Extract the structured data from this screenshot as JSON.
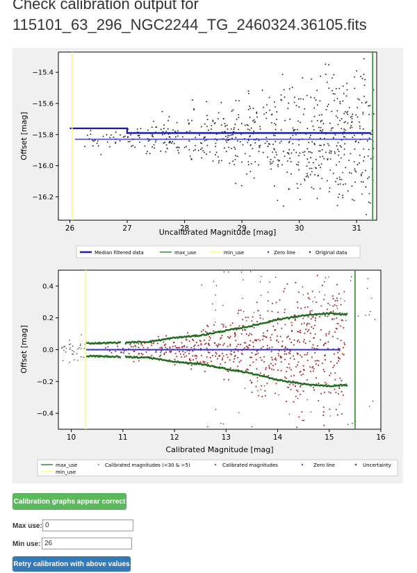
{
  "page": {
    "title_line1": "Check calibration output for",
    "title_line2": "115101_63_296_NGC2244_TG_2460324.36105.fits"
  },
  "colors": {
    "panel_bg": "#f0f0f0",
    "median_blue": "#1a1fb4",
    "max_use_green": "#2e8b2e",
    "min_use_yellow": "#ffff66",
    "zero_line_blue": "#3333cc",
    "original_black": "#222222",
    "calibrated_red": "#a52a2a",
    "uncertainty_green": "#1e6b1e",
    "button_green": "#5cb85c",
    "button_blue": "#337ab7"
  },
  "chart_data": [
    {
      "type": "scatter",
      "xlabel": "Uncalibrated Magnitude [mag]",
      "ylabel": "Offset [mag]",
      "xlim": [
        25.8,
        31.35
      ],
      "ylim": [
        -16.35,
        -15.27
      ],
      "xticks": [
        26,
        27,
        28,
        29,
        30,
        31
      ],
      "yticks": [
        -15.4,
        -15.6,
        -15.8,
        -16.0,
        -16.2
      ],
      "grid": false,
      "legend": "bottom",
      "min_use": 26.04,
      "max_use": 31.28,
      "zero_line": {
        "value": -15.83,
        "x_start": 26.1,
        "x_end": 31.25
      },
      "median_filtered": [
        [
          26.0,
          -15.76
        ],
        [
          27.0,
          -15.76
        ],
        [
          27.0,
          -15.79
        ],
        [
          31.25,
          -15.79
        ]
      ],
      "original_summary": {
        "x_range": [
          26.1,
          31.3
        ],
        "center": -15.83
      },
      "legend_entries": [
        "Median filtered data",
        "max_use",
        "min_use",
        "Zero line",
        "Original data"
      ]
    },
    {
      "type": "scatter",
      "xlabel": "Calibrated Magnitude [mag]",
      "ylabel": "Offset [mag]",
      "xlim": [
        9.75,
        16.0
      ],
      "ylim": [
        -0.5,
        0.5
      ],
      "xticks": [
        10,
        11,
        12,
        13,
        14,
        15,
        16
      ],
      "yticks": [
        0.4,
        0.2,
        0.0,
        -0.2,
        -0.4
      ],
      "grid": false,
      "legend": "bottom",
      "min_use": 10.28,
      "max_use": 15.5,
      "zero_line": {
        "value": 0.0,
        "x_start": 10.3,
        "x_end": 15.2
      },
      "uncertainty_envelope": [
        [
          10.3,
          0.04
        ],
        [
          11.0,
          0.045
        ],
        [
          11.5,
          0.05
        ],
        [
          12.0,
          0.075
        ],
        [
          12.5,
          0.09
        ],
        [
          13.0,
          0.12
        ],
        [
          13.5,
          0.15
        ],
        [
          14.0,
          0.19
        ],
        [
          14.5,
          0.215
        ],
        [
          15.0,
          0.228
        ],
        [
          15.3,
          0.222
        ]
      ],
      "legend_entries": [
        "max_use",
        "Calibrated magnitudes (<30 & >5)",
        "Calibrated magnitudes",
        "Zero line",
        "Uncertainty",
        "min_use"
      ]
    }
  ],
  "actions": {
    "correct_label": "Calibration graphs appear correct",
    "retry_label": "Retry calibration with above values"
  },
  "form": {
    "max_use_label": "Max use:",
    "max_use_value": "0",
    "min_use_label": "Min use:",
    "min_use_value": "26"
  }
}
